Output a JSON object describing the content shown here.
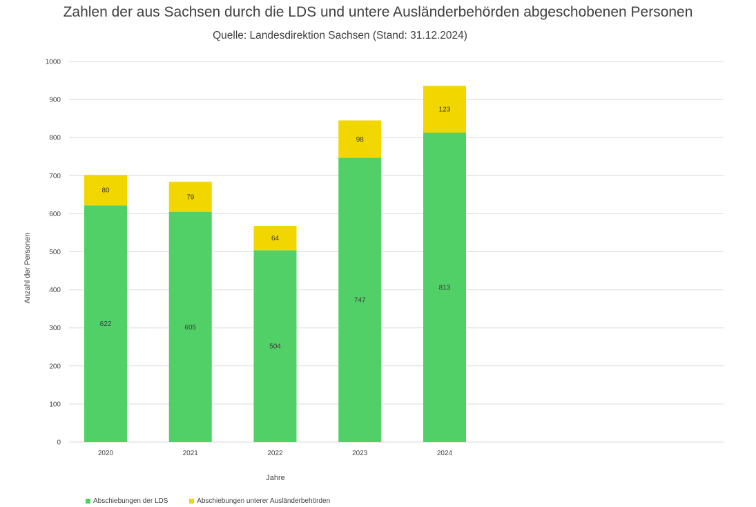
{
  "chart_data": {
    "type": "bar",
    "stacked": true,
    "title": "Zahlen der aus Sachsen durch die LDS und untere Ausländerbehörden abgeschobenen Personen",
    "subtitle": "Quelle: Landesdirektion Sachsen (Stand: 31.12.2024)",
    "xlabel": "Jahre",
    "ylabel": "Anzahl der Personen",
    "ylim": [
      0,
      1000
    ],
    "yticks": [
      0,
      100,
      200,
      300,
      400,
      500,
      600,
      700,
      800,
      900,
      1000
    ],
    "grid": true,
    "legend_position": "bottom-left",
    "categories": [
      "2020",
      "2021",
      "2022",
      "2023",
      "2024"
    ],
    "series": [
      {
        "name": "Abschiebungen der LDS",
        "color": "#52d068",
        "values": [
          622,
          605,
          504,
          747,
          813
        ]
      },
      {
        "name": "Abschiebungen unterer Ausländerbehörden",
        "color": "#f2d600",
        "values": [
          80,
          79,
          64,
          98,
          123
        ]
      }
    ]
  }
}
